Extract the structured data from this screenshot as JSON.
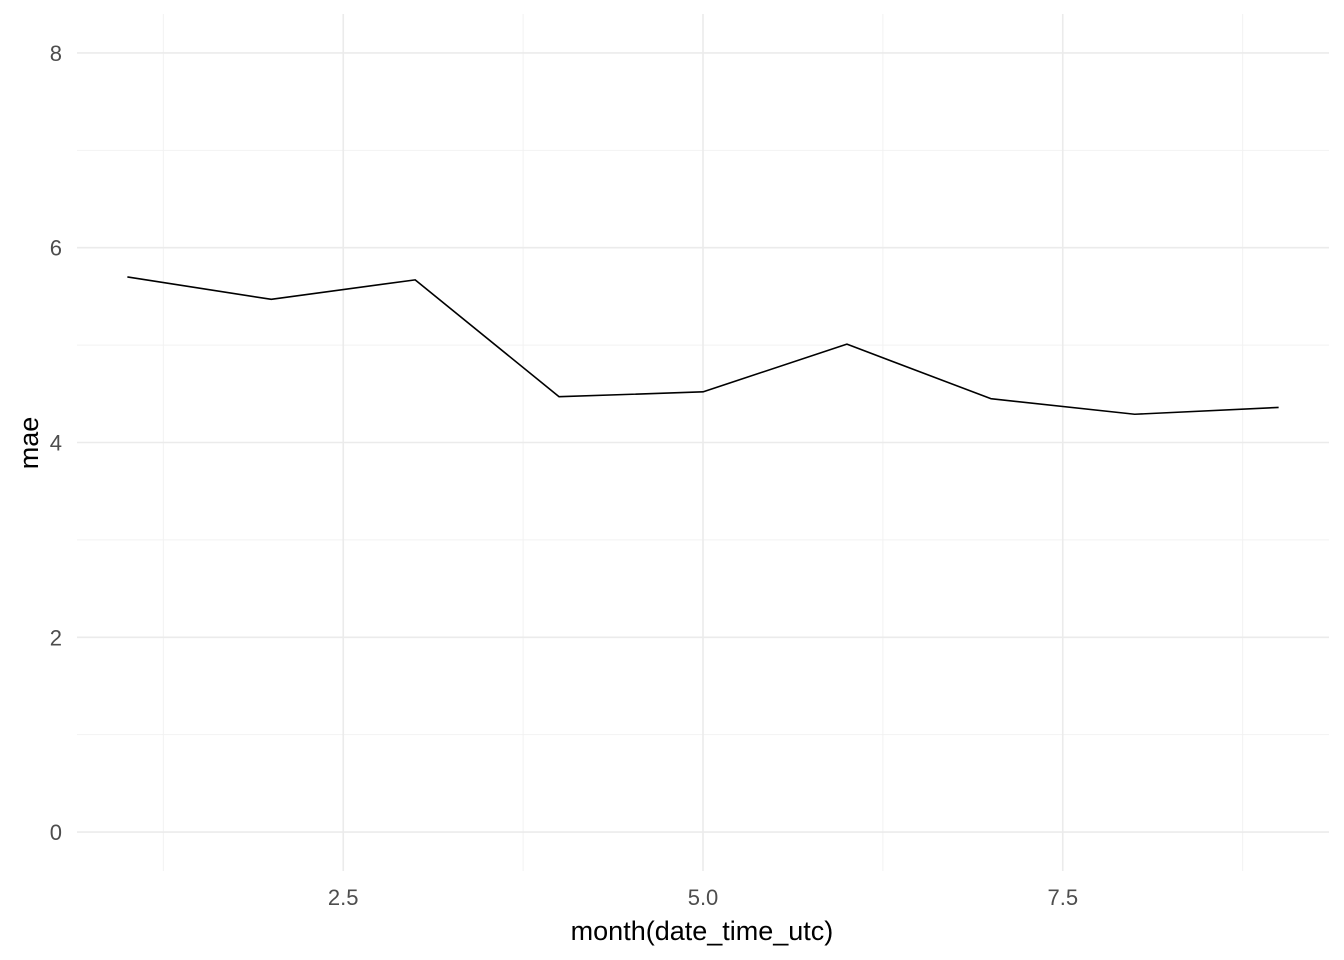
{
  "chart_data": {
    "type": "line",
    "xlabel": "month(date_time_utc)",
    "ylabel": "mae",
    "xlim": [
      0.65,
      9.35
    ],
    "ylim": [
      -0.4,
      8.4
    ],
    "x_ticks": [
      2.5,
      5.0,
      7.5
    ],
    "x_tick_labels": [
      "2.5",
      "5.0",
      "7.5"
    ],
    "x_minor_ticks": [
      1.25,
      3.75,
      6.25,
      8.75
    ],
    "y_ticks": [
      0,
      2,
      4,
      6,
      8
    ],
    "y_tick_labels": [
      "0",
      "2",
      "4",
      "6",
      "8"
    ],
    "y_minor_ticks": [
      1,
      3,
      5,
      7
    ],
    "grid": true,
    "legend": "none",
    "series": [
      {
        "color": "#000000",
        "x": [
          1,
          2,
          3,
          4,
          5,
          6,
          7,
          8,
          9
        ],
        "values": [
          5.7,
          5.47,
          5.67,
          4.47,
          4.52,
          5.01,
          4.45,
          4.29,
          4.36
        ]
      }
    ]
  }
}
